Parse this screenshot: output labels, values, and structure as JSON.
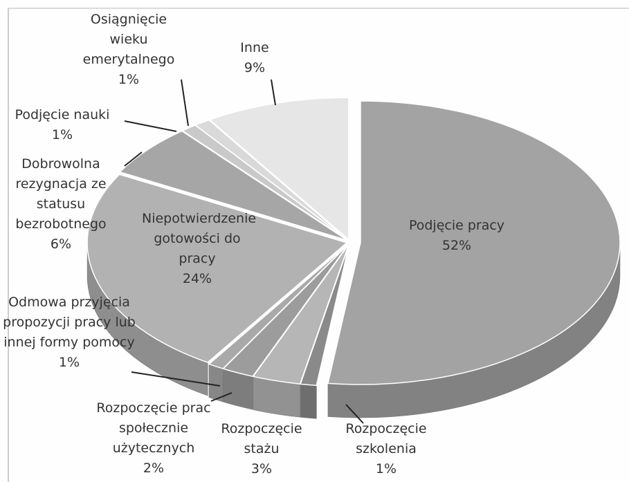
{
  "chart_data": {
    "type": "pie",
    "categories": [
      "Podjęcie pracy",
      "Rozpoczęcie szkolenia",
      "Rozpoczęcie stażu",
      "Rozpoczęcie prac społecznie użytecznych",
      "Odmowa przyjęcia propozycji pracy lub innej formy pomocy",
      "Niepotwierdzenie gotowości do pracy",
      "Dobrowolna rezygnacja ze statusu bezrobotnego",
      "Podjęcie nauki",
      "Osiągnięcie wieku emerytalnego",
      "Inne"
    ],
    "values": [
      52,
      1,
      3,
      2,
      1,
      24,
      6,
      1,
      1,
      9
    ],
    "value_labels": [
      "52%",
      "1%",
      "3%",
      "2%",
      "1%",
      "24%",
      "6%",
      "1%",
      "1%",
      "9%"
    ],
    "colors": [
      "#a3a3a3",
      "#8a8a8a",
      "#b6b6b6",
      "#9c9c9c",
      "#a9a9a9",
      "#b2b2b2",
      "#a6a6a6",
      "#c9c9c9",
      "#d9d9d9",
      "#e6e6e6"
    ]
  }
}
